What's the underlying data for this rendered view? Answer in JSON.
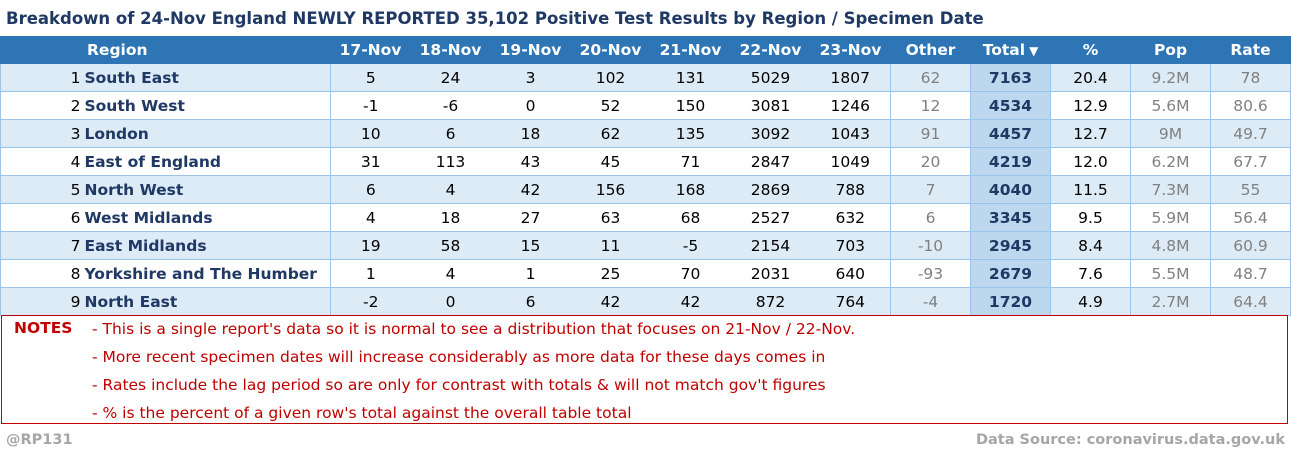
{
  "title": "Breakdown of 24-Nov England NEWLY REPORTED 35,102 Positive Test Results by Region / Specimen Date",
  "table": {
    "headers": {
      "region": "Region",
      "d1": "17-Nov",
      "d2": "18-Nov",
      "d3": "19-Nov",
      "d4": "20-Nov",
      "d5": "21-Nov",
      "d6": "22-Nov",
      "d7": "23-Nov",
      "other": "Other",
      "total": "Total",
      "pct": "%",
      "pop": "Pop",
      "rate": "Rate"
    },
    "sort_icon": "▼",
    "rows": [
      {
        "rank": "1",
        "region": "South East",
        "d1": "5",
        "d2": "24",
        "d3": "3",
        "d4": "102",
        "d5": "131",
        "d6": "5029",
        "d7": "1807",
        "other": "62",
        "total": "7163",
        "pct": "20.4",
        "pop": "9.2M",
        "rate": "78"
      },
      {
        "rank": "2",
        "region": "South West",
        "d1": "-1",
        "d2": "-6",
        "d3": "0",
        "d4": "52",
        "d5": "150",
        "d6": "3081",
        "d7": "1246",
        "other": "12",
        "total": "4534",
        "pct": "12.9",
        "pop": "5.6M",
        "rate": "80.6"
      },
      {
        "rank": "3",
        "region": "London",
        "d1": "10",
        "d2": "6",
        "d3": "18",
        "d4": "62",
        "d5": "135",
        "d6": "3092",
        "d7": "1043",
        "other": "91",
        "total": "4457",
        "pct": "12.7",
        "pop": "9M",
        "rate": "49.7"
      },
      {
        "rank": "4",
        "region": "East of England",
        "d1": "31",
        "d2": "113",
        "d3": "43",
        "d4": "45",
        "d5": "71",
        "d6": "2847",
        "d7": "1049",
        "other": "20",
        "total": "4219",
        "pct": "12.0",
        "pop": "6.2M",
        "rate": "67.7"
      },
      {
        "rank": "5",
        "region": "North West",
        "d1": "6",
        "d2": "4",
        "d3": "42",
        "d4": "156",
        "d5": "168",
        "d6": "2869",
        "d7": "788",
        "other": "7",
        "total": "4040",
        "pct": "11.5",
        "pop": "7.3M",
        "rate": "55"
      },
      {
        "rank": "6",
        "region": "West Midlands",
        "d1": "4",
        "d2": "18",
        "d3": "27",
        "d4": "63",
        "d5": "68",
        "d6": "2527",
        "d7": "632",
        "other": "6",
        "total": "3345",
        "pct": "9.5",
        "pop": "5.9M",
        "rate": "56.4"
      },
      {
        "rank": "7",
        "region": "East Midlands",
        "d1": "19",
        "d2": "58",
        "d3": "15",
        "d4": "11",
        "d5": "-5",
        "d6": "2154",
        "d7": "703",
        "other": "-10",
        "total": "2945",
        "pct": "8.4",
        "pop": "4.8M",
        "rate": "60.9"
      },
      {
        "rank": "8",
        "region": "Yorkshire and The Humber",
        "d1": "1",
        "d2": "4",
        "d3": "1",
        "d4": "25",
        "d5": "70",
        "d6": "2031",
        "d7": "640",
        "other": "-93",
        "total": "2679",
        "pct": "7.6",
        "pop": "5.5M",
        "rate": "48.7"
      },
      {
        "rank": "9",
        "region": "North East",
        "d1": "-2",
        "d2": "0",
        "d3": "6",
        "d4": "42",
        "d5": "42",
        "d6": "872",
        "d7": "764",
        "other": "-4",
        "total": "1720",
        "pct": "4.9",
        "pop": "2.7M",
        "rate": "64.4"
      }
    ]
  },
  "notes": {
    "label": "NOTES",
    "items": [
      "- This is a single report's data so it is normal to see a distribution that focuses on 21-Nov / 22-Nov.",
      "- More recent specimen dates will increase considerably as more data for these days comes in",
      "- Rates include the lag period so are only for contrast with totals & will not match gov't figures",
      "- % is the percent of a given row's total against the overall table total"
    ]
  },
  "footer": {
    "author": "@RP131",
    "source": "Data Source: coronavirus.data.gov.uk"
  },
  "colors": {
    "header_bg": "#2e75b6",
    "title": "#1f3864",
    "notes": "#c00000",
    "row_alt": "#ddebf7",
    "total_bg": "#bdd7ee"
  }
}
